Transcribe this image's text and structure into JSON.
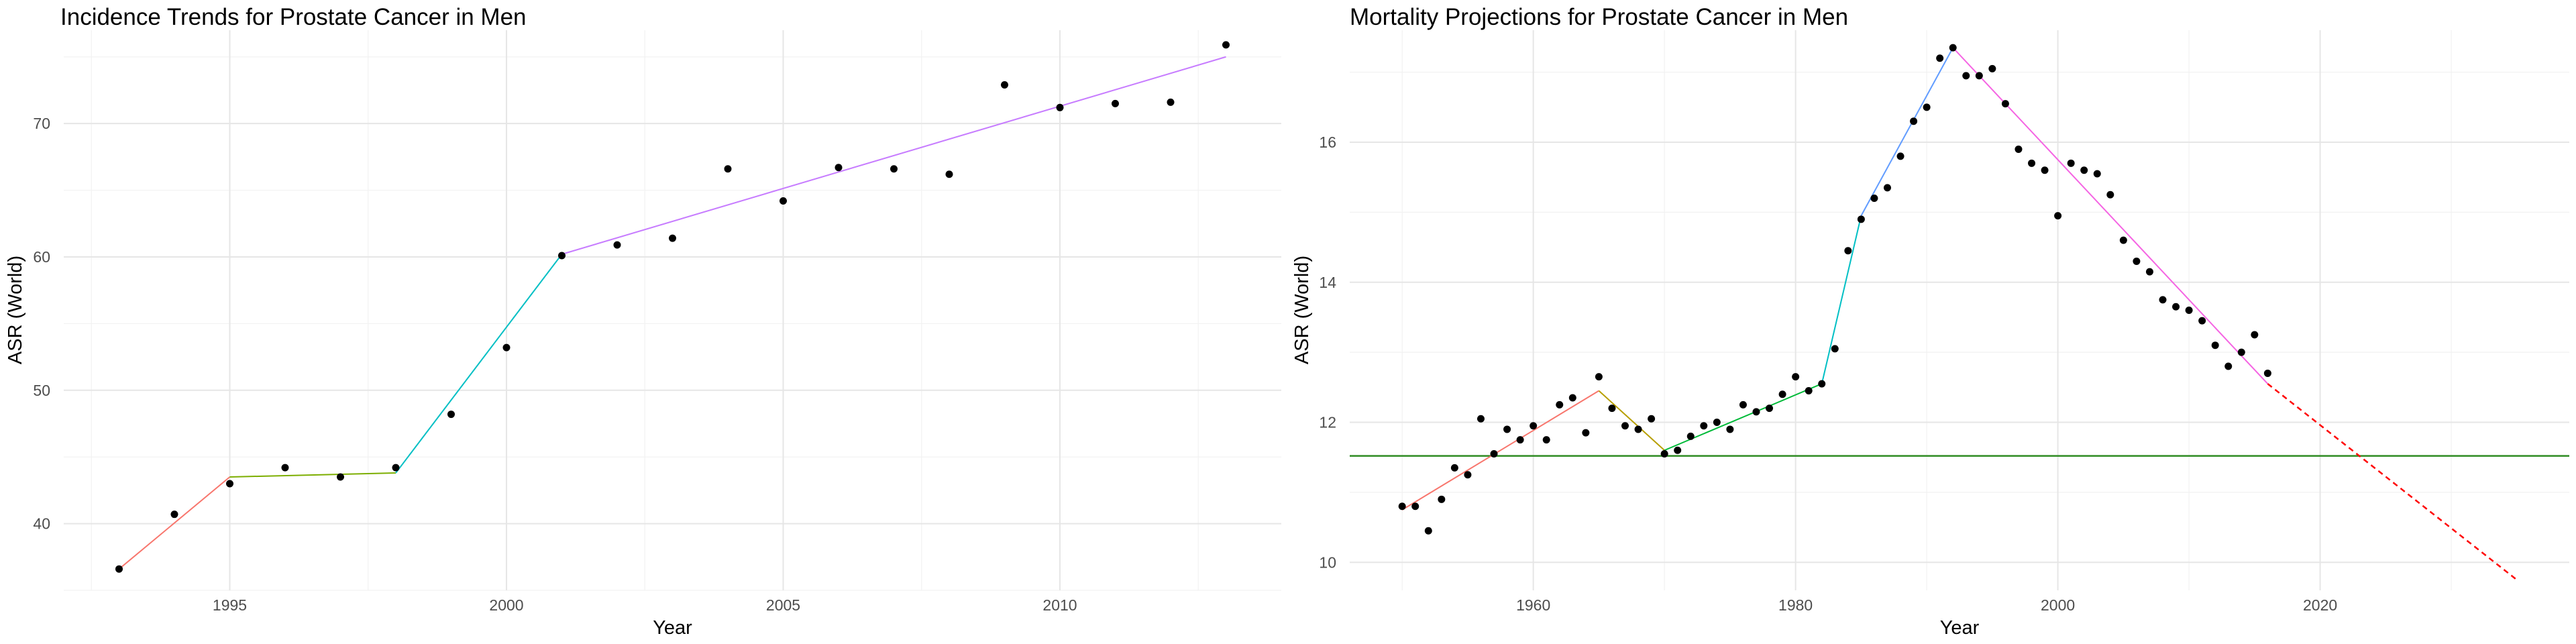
{
  "chart_data": [
    {
      "type": "scatter",
      "title": "Incidence Trends for Prostate Cancer in Men",
      "xlabel": "Year",
      "ylabel": "ASR (World)",
      "xlim": [
        1992,
        2014
      ],
      "ylim": [
        35,
        77
      ],
      "x_ticks": [
        1995,
        2000,
        2005,
        2010
      ],
      "y_ticks": [
        40,
        50,
        60,
        70
      ],
      "x_tick_labels": [
        "1995",
        "2000",
        "2005",
        "2010"
      ],
      "y_tick_labels": [
        "40",
        "50",
        "60",
        "70"
      ],
      "grid": true,
      "legend": "none",
      "points": {
        "x": [
          1993,
          1994,
          1995,
          1996,
          1997,
          1998,
          1999,
          2000,
          2001,
          2002,
          2003,
          2004,
          2005,
          2006,
          2007,
          2008,
          2009,
          2010,
          2011,
          2012,
          2013
        ],
        "y": [
          36.6,
          40.7,
          43.0,
          44.2,
          43.5,
          44.2,
          48.2,
          53.2,
          60.1,
          60.9,
          61.4,
          66.6,
          64.2,
          66.7,
          66.6,
          66.2,
          72.9,
          71.2,
          71.5,
          71.6,
          75.9
        ]
      },
      "segments": [
        {
          "color": "#F8766D",
          "x": [
            1993,
            1995
          ],
          "y": [
            36.6,
            43.5
          ]
        },
        {
          "color": "#7CAE00",
          "x": [
            1995,
            1998
          ],
          "y": [
            43.5,
            43.8
          ]
        },
        {
          "color": "#00BFC4",
          "x": [
            1998,
            2001
          ],
          "y": [
            43.8,
            60.2
          ]
        },
        {
          "color": "#C77CFF",
          "x": [
            2001,
            2013
          ],
          "y": [
            60.2,
            75.0
          ]
        }
      ]
    },
    {
      "type": "scatter",
      "title": "Mortality Projections for Prostate Cancer in Men",
      "xlabel": "Year",
      "ylabel": "ASR (World)",
      "xlim": [
        1946,
        2039
      ],
      "ylim": [
        9.6,
        17.6
      ],
      "x_ticks": [
        1960,
        1980,
        2000,
        2020
      ],
      "y_ticks": [
        10,
        12,
        14,
        16
      ],
      "x_tick_labels": [
        "1960",
        "1980",
        "2000",
        "2020"
      ],
      "y_tick_labels": [
        "10",
        "12",
        "14",
        "16"
      ],
      "grid": true,
      "legend": "none",
      "points": {
        "x": [
          1950,
          1951,
          1952,
          1953,
          1954,
          1955,
          1956,
          1957,
          1958,
          1959,
          1960,
          1961,
          1962,
          1963,
          1964,
          1965,
          1966,
          1967,
          1968,
          1969,
          1970,
          1971,
          1972,
          1973,
          1974,
          1975,
          1976,
          1977,
          1978,
          1979,
          1980,
          1981,
          1982,
          1983,
          1984,
          1985,
          1986,
          1987,
          1988,
          1989,
          1990,
          1991,
          1992,
          1993,
          1994,
          1995,
          1996,
          1997,
          1998,
          1999,
          2000,
          2001,
          2002,
          2003,
          2004,
          2005,
          2006,
          2007,
          2008,
          2009,
          2010,
          2011,
          2012,
          2013,
          2014,
          2015,
          2016
        ],
        "y": [
          10.8,
          10.8,
          10.45,
          10.9,
          11.35,
          11.25,
          12.05,
          11.55,
          11.9,
          11.75,
          11.95,
          11.75,
          12.25,
          12.35,
          11.85,
          12.65,
          12.2,
          11.95,
          11.9,
          12.05,
          11.55,
          11.6,
          11.8,
          11.95,
          12.0,
          11.9,
          12.25,
          12.15,
          12.2,
          12.4,
          12.65,
          12.45,
          12.55,
          13.05,
          14.45,
          14.9,
          15.2,
          15.35,
          15.8,
          16.3,
          16.5,
          17.2,
          17.35,
          16.95,
          16.95,
          17.05,
          16.55,
          15.9,
          15.7,
          15.6,
          14.95,
          15.7,
          15.6,
          15.55,
          15.25,
          14.6,
          14.3,
          14.15,
          13.75,
          13.65,
          13.6,
          13.45,
          13.1,
          12.8,
          13.0,
          13.25,
          12.7
        ]
      },
      "segments": [
        {
          "color": "#F8766D",
          "x": [
            1950,
            1965
          ],
          "y": [
            10.75,
            12.45
          ]
        },
        {
          "color": "#B79F00",
          "x": [
            1965,
            1970
          ],
          "y": [
            12.45,
            11.6
          ]
        },
        {
          "color": "#00BA38",
          "x": [
            1970,
            1982
          ],
          "y": [
            11.6,
            12.55
          ]
        },
        {
          "color": "#00BFC4",
          "x": [
            1982,
            1985
          ],
          "y": [
            12.55,
            14.95
          ]
        },
        {
          "color": "#619CFF",
          "x": [
            1985,
            1992
          ],
          "y": [
            14.95,
            17.35
          ]
        },
        {
          "color": "#F564E3",
          "x": [
            1992,
            2016
          ],
          "y": [
            17.35,
            12.55
          ]
        }
      ],
      "projection": {
        "color": "#FF0000",
        "style": "dashed",
        "x": [
          2016,
          2035
        ],
        "y": [
          12.55,
          9.75
        ]
      },
      "reference_line": {
        "color": "#2E8B22",
        "y": 11.52
      }
    }
  ]
}
